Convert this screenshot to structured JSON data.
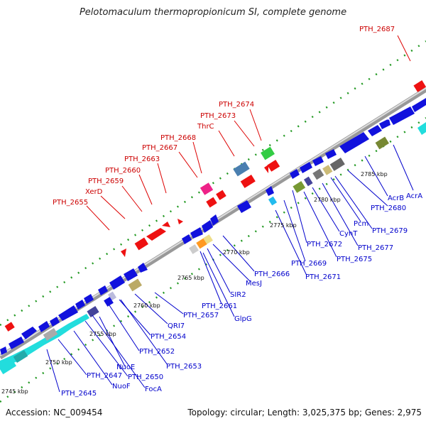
{
  "title": "Pelotomaculum thermopropionicum SI, complete genome",
  "footer": {
    "accession": "Accession: NC_009454",
    "summary": "Topology: circular; Length: 3,025,375 bp; Genes: 2,975"
  },
  "scale_labels": [
    "2745 kbp",
    "2750 kbp",
    "2755 kbp",
    "2760 kbp",
    "2765 kbp",
    "2770 kbp",
    "2775 kbp",
    "2780 kbp",
    "2785 kbp"
  ],
  "forward_labels": [
    "PTH_2687",
    "PTH_2674",
    "PTH_2673",
    "ThrC",
    "PTH_2668",
    "PTH_2667",
    "PTH_2663",
    "PTH_2660",
    "PTH_2659",
    "XerD",
    "PTH_2655"
  ],
  "reverse_labels": [
    "AcrA",
    "AcrB",
    "PTH_2680",
    "PTH_2679",
    "Pcm",
    "PTH_2677",
    "CynT",
    "PTH_2675",
    "PTH_2672",
    "PTH_2669",
    "PTH_2671",
    "PTH_2666",
    "MesJ",
    "SIR2",
    "PTH_2661",
    "GlpG",
    "PTH_2657",
    "QRI7",
    "PTH_2654",
    "PTH_2652",
    "PTH_2653",
    "NuoE",
    "PTH_2650",
    "NuoF",
    "FocA",
    "PTH_2647",
    "PTH_2645"
  ],
  "colors": {
    "forward_label": "#cc0000",
    "reverse_label": "#0000cc",
    "forward_gene": "#ee1111",
    "reverse_gene": "#1111dd",
    "backbone": "#888888",
    "tick": "#229922"
  }
}
